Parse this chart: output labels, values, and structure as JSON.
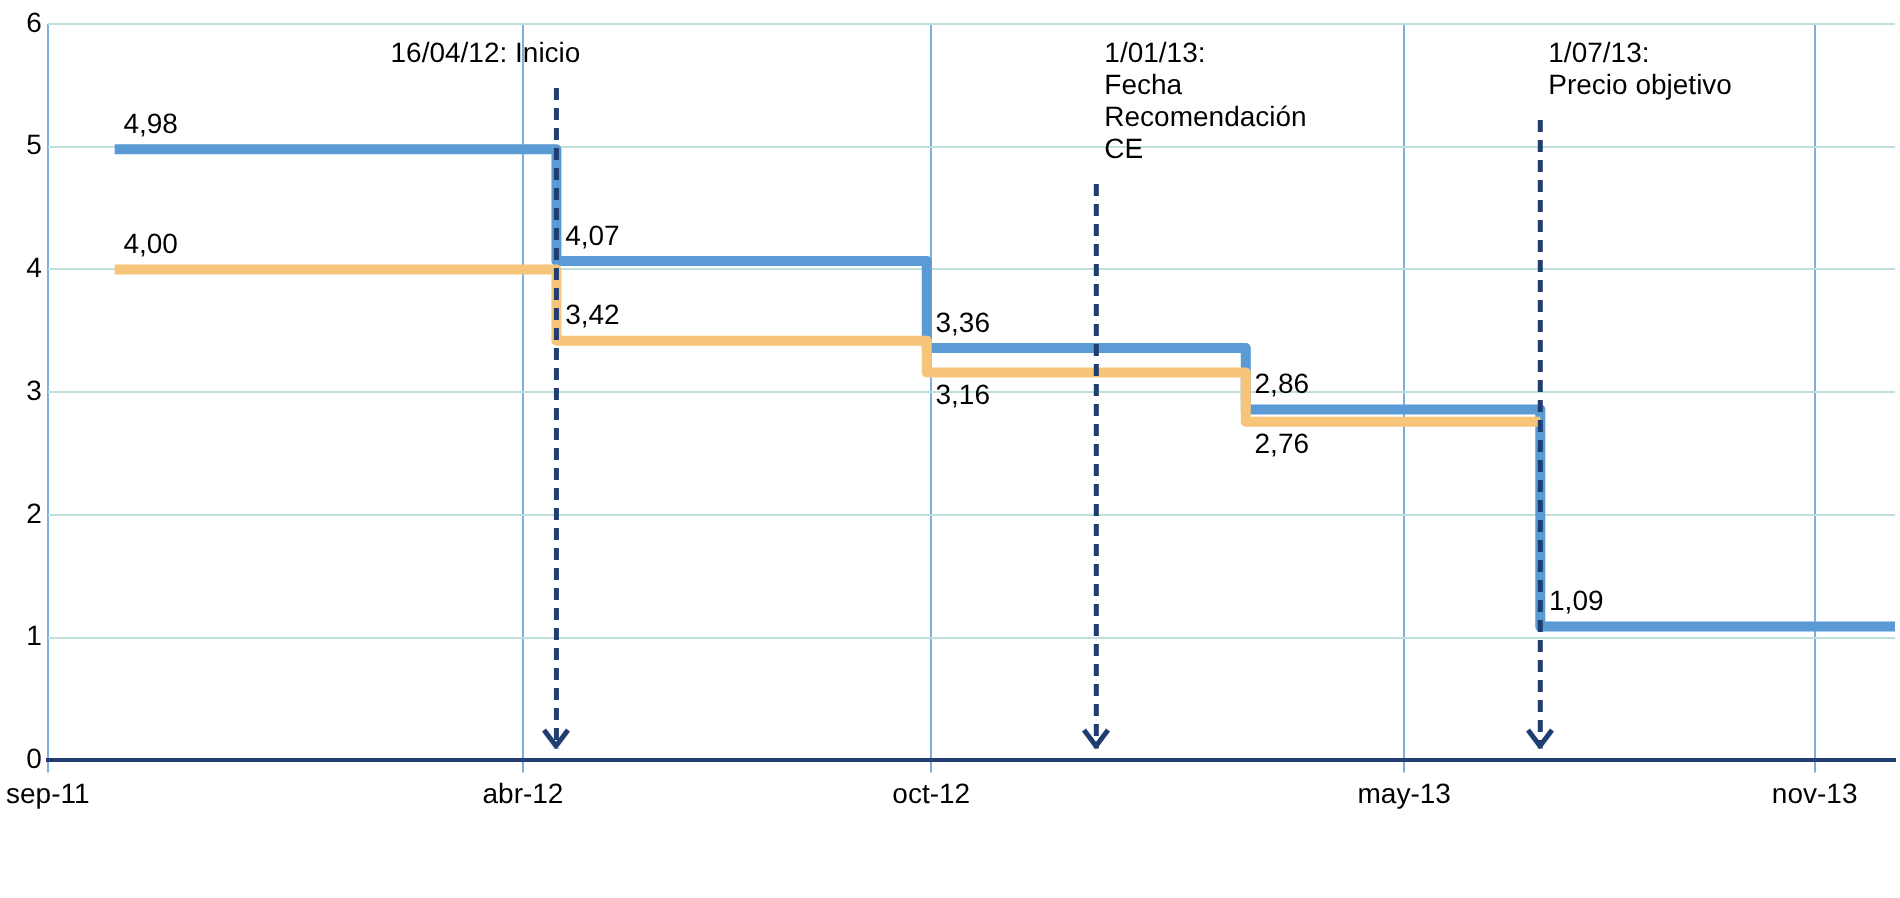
{
  "chart_data": {
    "type": "step",
    "x": [
      "2011-10-01",
      "2012-04-16",
      "2012-09-29",
      "2013-02-19",
      "2013-07-01",
      "2013-12-07"
    ],
    "series": [
      {
        "color": "#f7c57a",
        "values": [
          4.0,
          3.42,
          3.16,
          2.76,
          2.76,
          null
        ],
        "value_labels": [
          "4,00",
          "3,42",
          "3,16",
          "2,76",
          null,
          null
        ]
      },
      {
        "color": "#5b9bd5",
        "values": [
          4.98,
          4.07,
          3.36,
          2.86,
          1.09,
          1.09
        ],
        "value_labels": [
          "4,98",
          "4,07",
          "3,36",
          "2,86",
          "1,09",
          null
        ]
      }
    ],
    "xlim": [
      "2011-09-01",
      "2013-12-07"
    ],
    "xticks": [
      {
        "value": "2011-09-01",
        "label": "sep-11"
      },
      {
        "value": "2012-04-01",
        "label": "abr-12"
      },
      {
        "value": "2012-10-01",
        "label": "oct-12"
      },
      {
        "value": "2013-05-01",
        "label": "may-13"
      },
      {
        "value": "2013-11-01",
        "label": "nov-13"
      }
    ],
    "ylim": [
      0,
      6
    ],
    "yticks": [
      0,
      1,
      2,
      3,
      4,
      5,
      6
    ],
    "grid": true,
    "legend": false,
    "ref_lines": [
      {
        "axis": "x",
        "value": "2012-04-16",
        "label": "16/04/12: Inicio",
        "color": "#1f3d6e",
        "line_style": "dashed"
      },
      {
        "axis": "x",
        "value": "2012-12-14",
        "label": "1/01/13:\nFecha\nRecomendación\nCE",
        "color": "#1f3d6e",
        "line_style": "dashed"
      },
      {
        "axis": "x",
        "value": "2013-07-01",
        "label": "1/07/13:\nPrecio objetivo",
        "color": "#1f3d6e",
        "line_style": "dashed"
      }
    ]
  }
}
